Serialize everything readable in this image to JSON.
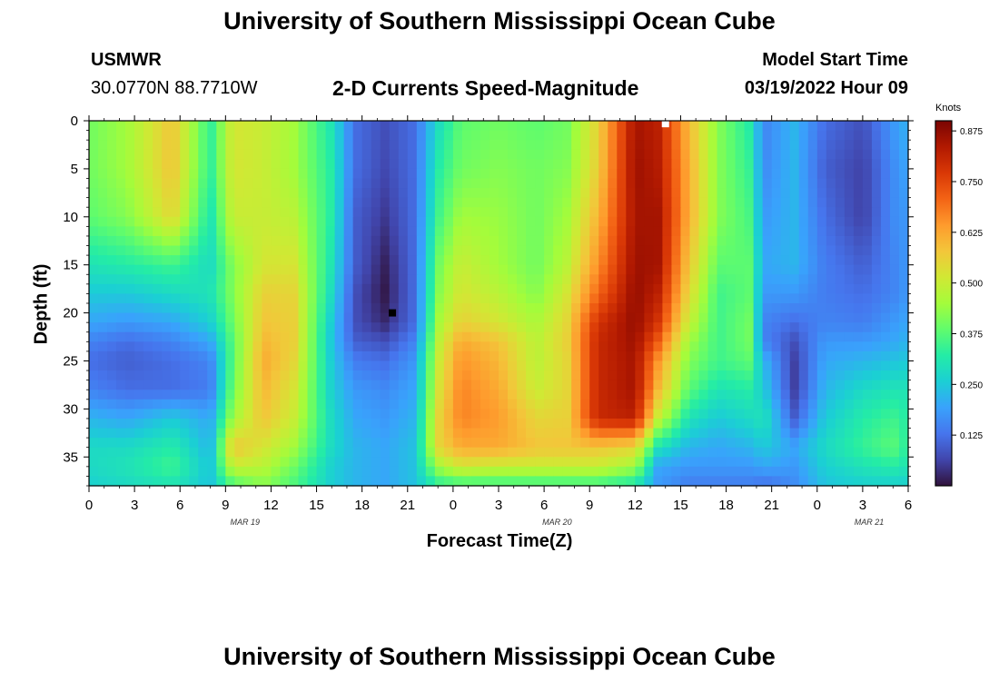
{
  "header": {
    "title": "University of Southern Mississippi Ocean Cube",
    "station": "USMWR",
    "coords": "30.0770N  88.7710W",
    "subtitle": "2-D Currents Speed-Magnitude",
    "model_label": "Model Start Time",
    "model_time": "03/19/2022 Hour 09"
  },
  "footer": {
    "title": "University of Southern Mississippi Ocean Cube"
  },
  "chart_data": {
    "type": "heatmap",
    "title": "2-D Currents Speed-Magnitude",
    "xlabel": "Forecast Time(Z)",
    "ylabel": "Depth (ft)",
    "colorbar_label": "Knots",
    "x_tick_labels": [
      "0",
      "3",
      "6",
      "9",
      "12",
      "15",
      "18",
      "21",
      "0",
      "3",
      "6",
      "9",
      "12",
      "15",
      "18",
      "21",
      "0",
      "3",
      "6"
    ],
    "date_labels": [
      {
        "label": "MAR 19",
        "at_hour": 12
      },
      {
        "label": "MAR 20",
        "at_hour": 36
      },
      {
        "label": "MAR 21",
        "at_hour": 60
      }
    ],
    "x_range_hours": [
      0,
      54
    ],
    "y_ticks": [
      0,
      5,
      10,
      15,
      20,
      25,
      30,
      35
    ],
    "y_range_ft": [
      0,
      38
    ],
    "colorbar_ticks": [
      0.125,
      0.25,
      0.375,
      0.5,
      0.625,
      0.75,
      0.875
    ],
    "colorbar_tick_labels": [
      "0.125",
      "0.250",
      "0.375",
      "0.500",
      "0.625",
      "0.750",
      "0.875"
    ],
    "colorbar_range": [
      0,
      0.9
    ],
    "colormap": [
      "#30123b",
      "#4145ab",
      "#4675ed",
      "#39a2fc",
      "#1bcfd4",
      "#24eca6",
      "#61fc6c",
      "#a4fc3b",
      "#d1e834",
      "#f3c63a",
      "#fe9b2d",
      "#f36315",
      "#d93806",
      "#b11901",
      "#7a0402"
    ],
    "grid": false,
    "legend": "colorbar-right",
    "hours": [
      0,
      2.5,
      5.5,
      8,
      9.5,
      11.5,
      13.5,
      16,
      17.5,
      19.5,
      21.5,
      23,
      24.5,
      27,
      29.5,
      31.5,
      33.5,
      36,
      37.5,
      39.5,
      41.5,
      43.5,
      44.5,
      46.5,
      48.5,
      51,
      53,
      54
    ],
    "depths_ft": [
      0,
      5,
      10,
      15,
      18,
      21,
      23,
      25,
      28,
      31,
      34,
      36,
      38
    ],
    "speeds_knots": [
      [
        0.4,
        0.45,
        0.58,
        0.33,
        0.52,
        0.5,
        0.45,
        0.3,
        0.12,
        0.08,
        0.12,
        0.28,
        0.38,
        0.4,
        0.38,
        0.4,
        0.55,
        0.85,
        0.82,
        0.6,
        0.42,
        0.32,
        0.15,
        0.22,
        0.12,
        0.08,
        0.18,
        0.22
      ],
      [
        0.4,
        0.45,
        0.58,
        0.33,
        0.52,
        0.5,
        0.45,
        0.32,
        0.12,
        0.07,
        0.12,
        0.32,
        0.4,
        0.42,
        0.4,
        0.42,
        0.56,
        0.86,
        0.83,
        0.62,
        0.42,
        0.34,
        0.16,
        0.22,
        0.1,
        0.06,
        0.16,
        0.2
      ],
      [
        0.38,
        0.42,
        0.55,
        0.3,
        0.5,
        0.5,
        0.48,
        0.32,
        0.1,
        0.05,
        0.12,
        0.35,
        0.45,
        0.44,
        0.4,
        0.45,
        0.6,
        0.85,
        0.85,
        0.62,
        0.42,
        0.36,
        0.18,
        0.22,
        0.12,
        0.06,
        0.16,
        0.18
      ],
      [
        0.3,
        0.32,
        0.35,
        0.28,
        0.42,
        0.52,
        0.52,
        0.3,
        0.1,
        0.02,
        0.12,
        0.4,
        0.5,
        0.45,
        0.4,
        0.48,
        0.65,
        0.86,
        0.85,
        0.58,
        0.38,
        0.38,
        0.2,
        0.22,
        0.14,
        0.1,
        0.15,
        0.18
      ],
      [
        0.25,
        0.25,
        0.28,
        0.3,
        0.42,
        0.56,
        0.55,
        0.28,
        0.08,
        0.01,
        0.12,
        0.42,
        0.52,
        0.48,
        0.42,
        0.52,
        0.7,
        0.87,
        0.82,
        0.55,
        0.35,
        0.38,
        0.18,
        0.18,
        0.14,
        0.12,
        0.15,
        0.18
      ],
      [
        0.2,
        0.18,
        0.2,
        0.26,
        0.4,
        0.58,
        0.56,
        0.25,
        0.08,
        0.03,
        0.12,
        0.45,
        0.56,
        0.52,
        0.46,
        0.55,
        0.78,
        0.87,
        0.78,
        0.5,
        0.35,
        0.4,
        0.15,
        0.12,
        0.15,
        0.14,
        0.18,
        0.2
      ],
      [
        0.15,
        0.12,
        0.15,
        0.2,
        0.38,
        0.6,
        0.56,
        0.24,
        0.1,
        0.08,
        0.15,
        0.48,
        0.62,
        0.58,
        0.48,
        0.56,
        0.8,
        0.86,
        0.72,
        0.45,
        0.35,
        0.4,
        0.15,
        0.08,
        0.18,
        0.18,
        0.2,
        0.22
      ],
      [
        0.12,
        0.1,
        0.12,
        0.15,
        0.38,
        0.62,
        0.55,
        0.25,
        0.14,
        0.12,
        0.18,
        0.5,
        0.65,
        0.6,
        0.48,
        0.55,
        0.8,
        0.85,
        0.65,
        0.42,
        0.35,
        0.38,
        0.22,
        0.06,
        0.2,
        0.22,
        0.24,
        0.25
      ],
      [
        0.15,
        0.12,
        0.12,
        0.14,
        0.4,
        0.6,
        0.52,
        0.26,
        0.18,
        0.16,
        0.2,
        0.52,
        0.67,
        0.62,
        0.5,
        0.55,
        0.8,
        0.85,
        0.6,
        0.38,
        0.3,
        0.32,
        0.25,
        0.06,
        0.22,
        0.28,
        0.3,
        0.3
      ],
      [
        0.22,
        0.2,
        0.25,
        0.2,
        0.45,
        0.58,
        0.5,
        0.28,
        0.2,
        0.18,
        0.22,
        0.55,
        0.67,
        0.64,
        0.55,
        0.56,
        0.8,
        0.82,
        0.5,
        0.3,
        0.25,
        0.28,
        0.3,
        0.1,
        0.25,
        0.32,
        0.35,
        0.32
      ],
      [
        0.28,
        0.28,
        0.32,
        0.22,
        0.58,
        0.52,
        0.45,
        0.28,
        0.22,
        0.2,
        0.24,
        0.55,
        0.62,
        0.62,
        0.58,
        0.58,
        0.58,
        0.55,
        0.3,
        0.22,
        0.2,
        0.22,
        0.25,
        0.2,
        0.28,
        0.34,
        0.38,
        0.32
      ],
      [
        0.28,
        0.3,
        0.35,
        0.24,
        0.5,
        0.48,
        0.4,
        0.26,
        0.22,
        0.2,
        0.24,
        0.45,
        0.52,
        0.5,
        0.5,
        0.5,
        0.5,
        0.45,
        0.2,
        0.18,
        0.18,
        0.18,
        0.2,
        0.18,
        0.26,
        0.3,
        0.32,
        0.3
      ],
      [
        0.26,
        0.28,
        0.3,
        0.24,
        0.36,
        0.42,
        0.36,
        0.26,
        0.22,
        0.2,
        0.24,
        0.32,
        0.34,
        0.34,
        0.34,
        0.34,
        0.34,
        0.3,
        0.18,
        0.14,
        0.14,
        0.14,
        0.12,
        0.16,
        0.24,
        0.26,
        0.26,
        0.26
      ]
    ],
    "markers": [
      {
        "hour": 20,
        "depth_ft": 20,
        "color": "#000000"
      },
      {
        "hour": 38,
        "depth_ft": 0.3,
        "color": "#ffffff"
      }
    ]
  }
}
